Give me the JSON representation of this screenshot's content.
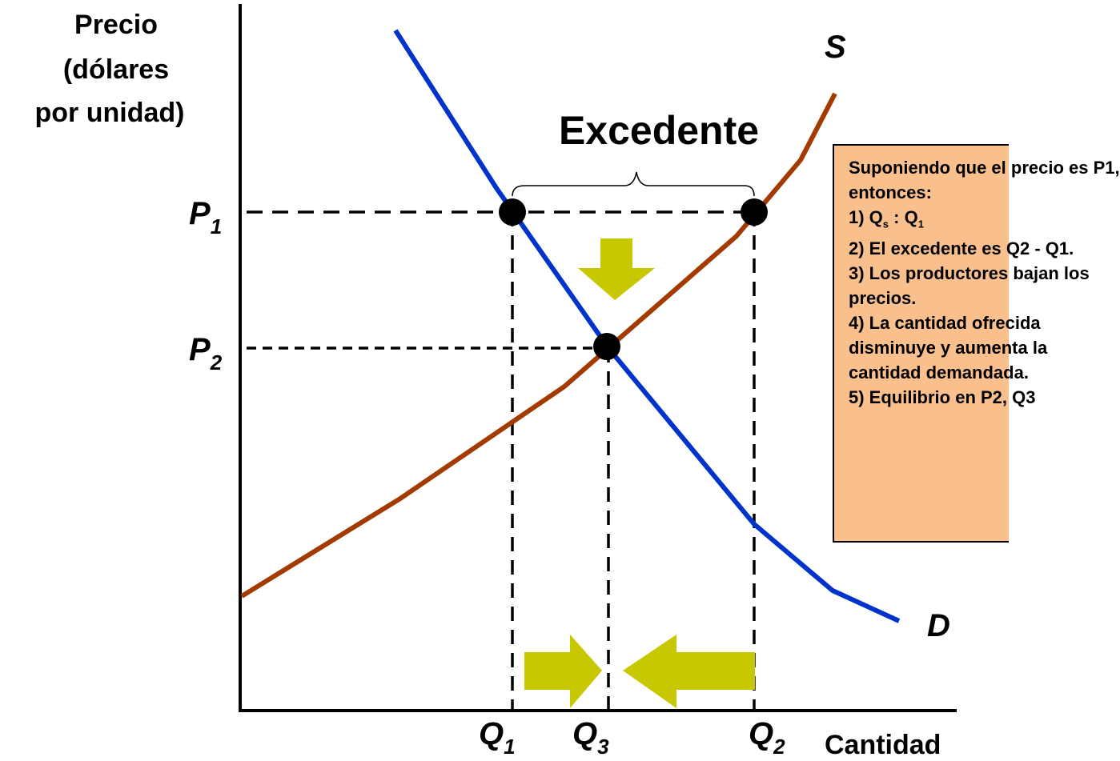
{
  "axes": {
    "ylabel": [
      "Precio",
      "(dólares",
      "por unidad)"
    ],
    "xlabel": "Cantidad"
  },
  "labels": {
    "supply": "S",
    "demand": "D",
    "surplus": "Excedente",
    "p1": "P",
    "p1_sub": "1",
    "p2": "P",
    "p2_sub": "2",
    "q1": "Q",
    "q1_sub": "1",
    "q3": "Q",
    "q3_sub": "3",
    "q2": "Q",
    "q2_sub": "2"
  },
  "colors": {
    "supply": "#a33a00",
    "demand": "#0033cc",
    "arrows": "#c8c800",
    "box_fill": "#f9c08e"
  },
  "textbox": {
    "line1": "Suponiendo que el precio es P1,",
    "line2": "entonces:",
    "line3_a": "1) Q",
    "line3_sub1": "s",
    "line3_b": " : Q",
    "line3_sub2": "1",
    "line4": "2) El excedente es Q2 - Q1.",
    "line5": "3) Los productores bajan los",
    "line6": "precios.",
    "line7": "4) La cantidad ofrecida",
    "line8": "disminuye y aumenta la",
    "line9": "cantidad demandada.",
    "line10": "5) Equilibrio en P2, Q3"
  }
}
